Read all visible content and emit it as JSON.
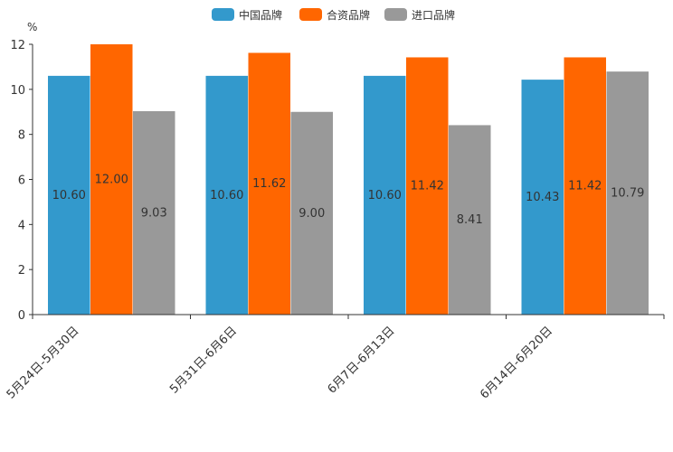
{
  "chart_data": {
    "type": "bar",
    "title": "",
    "xlabel": "",
    "ylabel": "",
    "y_unit": "%",
    "ylim": [
      0,
      12
    ],
    "yticks": [
      0,
      2,
      4,
      6,
      8,
      10,
      12
    ],
    "legend_position": "top-center",
    "grid": false,
    "categories": [
      "5月24日-5月30日",
      "5月31日-6月6日",
      "6月7日-6月13日",
      "6月14日-6月20日"
    ],
    "series": [
      {
        "name": "中国品牌",
        "color": "#3399CC",
        "values": [
          10.6,
          10.6,
          10.6,
          10.43
        ],
        "labels": [
          "10.60",
          "10.60",
          "10.60",
          "10.43"
        ]
      },
      {
        "name": "合资品牌",
        "color": "#FF6600",
        "values": [
          12.0,
          11.62,
          11.42,
          11.42
        ],
        "labels": [
          "12.00",
          "11.62",
          "11.42",
          "11.42"
        ]
      },
      {
        "name": "进口品牌",
        "color": "#999999",
        "values": [
          9.03,
          9.0,
          8.41,
          10.79
        ],
        "labels": [
          "9.03",
          "9.00",
          "8.41",
          "10.79"
        ]
      }
    ]
  }
}
